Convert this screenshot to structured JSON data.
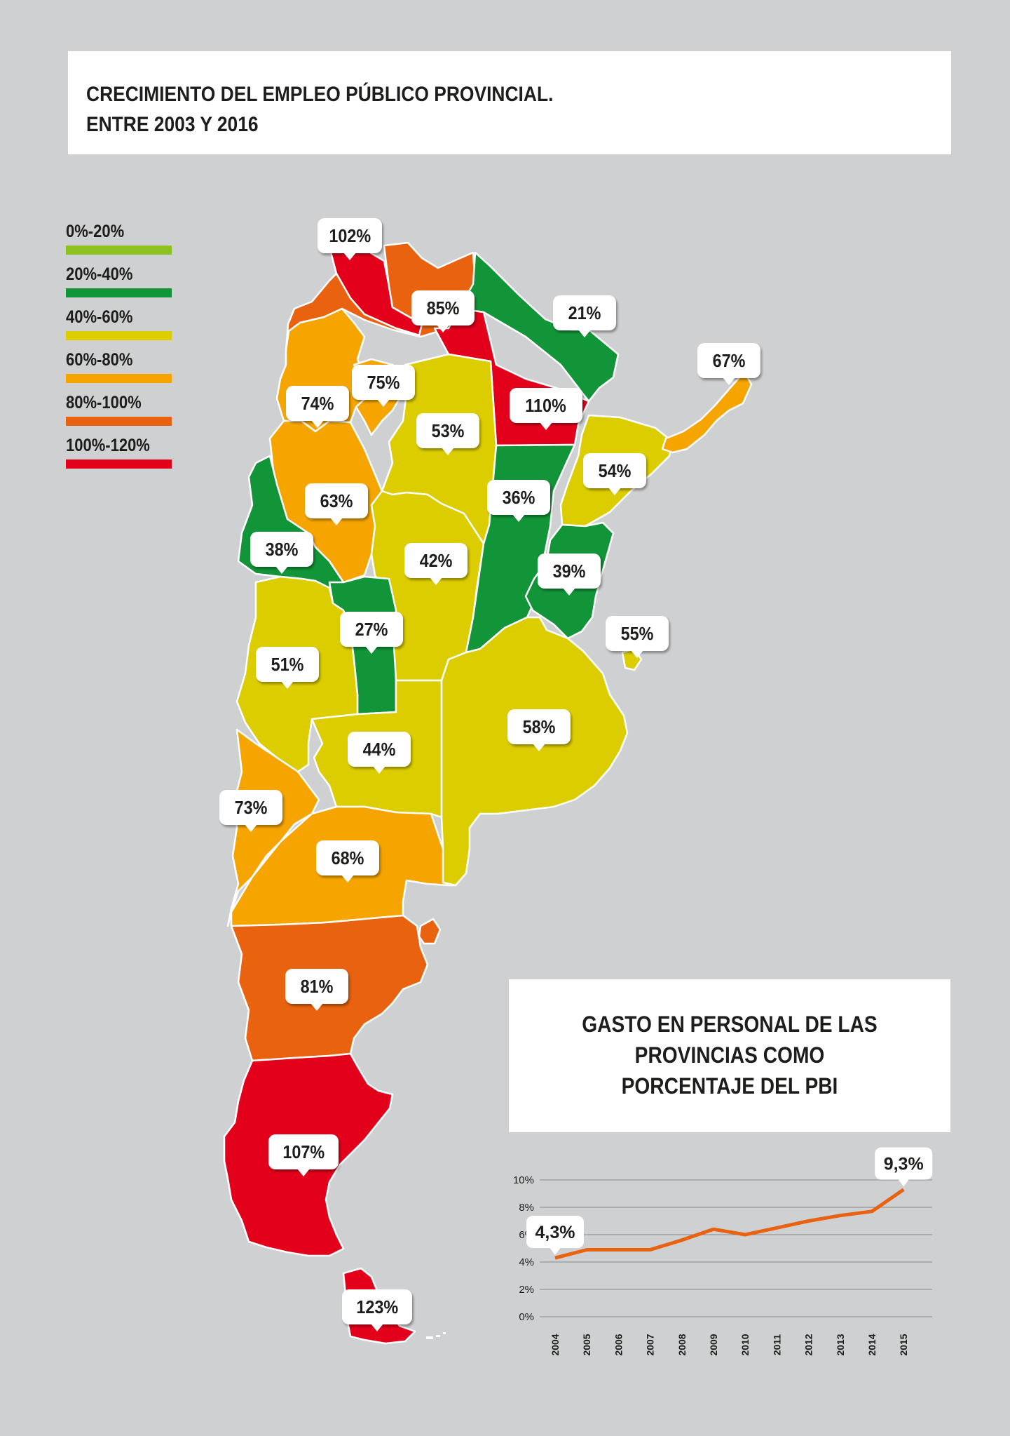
{
  "title": {
    "line1": "CRECIMIENTO DEL EMPLEO PÚBLICO PROVINCIAL.",
    "line2": "ENTRE 2003 Y 2016"
  },
  "legend": [
    {
      "label": "0%-20%",
      "color": "#8cc11f"
    },
    {
      "label": "20%-40%",
      "color": "#129438"
    },
    {
      "label": "40%-60%",
      "color": "#dccd00"
    },
    {
      "label": "60%-80%",
      "color": "#f6a500"
    },
    {
      "label": "80%-100%",
      "color": "#e8620f"
    },
    {
      "label": "100%-120%",
      "color": "#e2001a"
    }
  ],
  "provinces": [
    {
      "id": "jujuy",
      "value": "102%"
    },
    {
      "id": "salta",
      "value": "85%"
    },
    {
      "id": "misiones",
      "value": "21%"
    },
    {
      "id": "formosa",
      "value": "110%"
    },
    {
      "id": "corrientes-ne",
      "value": "67%"
    },
    {
      "id": "catamarca",
      "value": "74%"
    },
    {
      "id": "tucuman",
      "value": "75%"
    },
    {
      "id": "santiago",
      "value": "53%"
    },
    {
      "id": "corrientes",
      "value": "54%"
    },
    {
      "id": "la-rioja",
      "value": "63%"
    },
    {
      "id": "santa-fe",
      "value": "36%"
    },
    {
      "id": "san-juan",
      "value": "38%"
    },
    {
      "id": "cordoba",
      "value": "42%"
    },
    {
      "id": "entre-rios",
      "value": "39%"
    },
    {
      "id": "caba",
      "value": "55%"
    },
    {
      "id": "san-luis",
      "value": "27%"
    },
    {
      "id": "mendoza",
      "value": "51%"
    },
    {
      "id": "buenos-aires",
      "value": "58%"
    },
    {
      "id": "la-pampa",
      "value": "44%"
    },
    {
      "id": "neuquen",
      "value": "73%"
    },
    {
      "id": "rio-negro",
      "value": "68%"
    },
    {
      "id": "chubut",
      "value": "81%"
    },
    {
      "id": "santa-cruz",
      "value": "107%"
    },
    {
      "id": "tierra-del-fuego",
      "value": "123%"
    }
  ],
  "gasto": {
    "line1": "GASTO EN PERSONAL DE LAS",
    "line2": "PROVINCIAS COMO",
    "line3": "PORCENTAJE DEL PBI"
  },
  "chart_data": {
    "type": "line",
    "title": "GASTO EN PERSONAL DE LAS PROVINCIAS COMO PORCENTAJE DEL PBI",
    "x": [
      "2004",
      "2005",
      "2006",
      "2007",
      "2008",
      "2009",
      "2010",
      "2011",
      "2012",
      "2013",
      "2014",
      "2015"
    ],
    "series": [
      {
        "values": [
          4.3,
          4.9,
          4.9,
          4.9,
          5.6,
          6.4,
          6.0,
          6.5,
          7.0,
          7.4,
          7.7,
          9.3
        ]
      }
    ],
    "y_ticks": [
      "0%",
      "2%",
      "4%",
      "6%",
      "8%",
      "10%"
    ],
    "ylim": [
      0,
      10
    ],
    "annotations": [
      {
        "x": "2004",
        "label": "4,3%"
      },
      {
        "x": "2015",
        "label": "9,3%"
      }
    ],
    "line_color": "#e8620f",
    "grid": true
  }
}
